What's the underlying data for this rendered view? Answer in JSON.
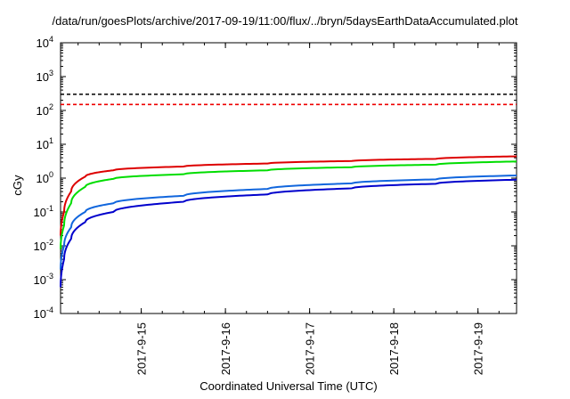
{
  "title": "/data/run/goesPlots/archive/2017-09-19/11:00/flux/../bryn/5daysEarthDataAccumulated.plot",
  "chart_data": {
    "type": "line",
    "title": "/data/run/goesPlots/archive/2017-09-19/11:00/flux/../bryn/5daysEarthDataAccumulated.plot",
    "xlabel": "Coordinated Universal Time (UTC)",
    "ylabel": "cGy",
    "y_scale": "log",
    "ylim": [
      0.0001,
      10000
    ],
    "xlim": [
      "2017-09-14 01:00",
      "2017-09-19 11:00"
    ],
    "grid": false,
    "legend": "none",
    "x_ticks": [
      "2017-9-15",
      "2017-9-16",
      "2017-9-17",
      "2017-9-18",
      "2017-9-19"
    ],
    "y_ticks": [
      {
        "base": "10",
        "exp": "-4"
      },
      {
        "base": "10",
        "exp": "-3"
      },
      {
        "base": "10",
        "exp": "-2"
      },
      {
        "base": "10",
        "exp": "-1"
      },
      {
        "base": "10",
        "exp": "0"
      },
      {
        "base": "10",
        "exp": "1"
      },
      {
        "base": "10",
        "exp": "2"
      },
      {
        "base": "10",
        "exp": "3"
      },
      {
        "base": "10",
        "exp": "4"
      }
    ],
    "series": [
      {
        "color": "#dd0000",
        "dash": false,
        "x": [
          "2017-09-14 01:00",
          "2017-09-14 02:00",
          "2017-09-14 04:00",
          "2017-09-14 08:00",
          "2017-09-14 16:00",
          "2017-09-15 12:00",
          "2017-09-16 12:00",
          "2017-09-17 12:00",
          "2017-09-18 12:00",
          "2017-09-19 11:00"
        ],
        "values": [
          0.02,
          0.1,
          0.4,
          1.1,
          1.7,
          2.2,
          2.7,
          3.2,
          3.7,
          4.4
        ]
      },
      {
        "color": "#00dd00",
        "dash": false,
        "x": [
          "2017-09-14 01:00",
          "2017-09-14 02:00",
          "2017-09-14 04:00",
          "2017-09-14 08:00",
          "2017-09-14 16:00",
          "2017-09-15 12:00",
          "2017-09-16 12:00",
          "2017-09-17 12:00",
          "2017-09-18 12:00",
          "2017-09-19 11:00"
        ],
        "values": [
          0.008,
          0.04,
          0.18,
          0.55,
          0.95,
          1.3,
          1.7,
          2.1,
          2.5,
          3.1
        ]
      },
      {
        "color": "#1166dd",
        "dash": false,
        "x": [
          "2017-09-14 01:00",
          "2017-09-14 02:00",
          "2017-09-14 04:00",
          "2017-09-14 08:00",
          "2017-09-14 16:00",
          "2017-09-15 12:00",
          "2017-09-16 12:00",
          "2017-09-17 12:00",
          "2017-09-18 12:00",
          "2017-09-19 11:00"
        ],
        "values": [
          0.002,
          0.01,
          0.035,
          0.1,
          0.18,
          0.3,
          0.48,
          0.7,
          0.92,
          1.2
        ]
      },
      {
        "color": "#0000cc",
        "dash": false,
        "x": [
          "2017-09-14 01:00",
          "2017-09-14 02:00",
          "2017-09-14 04:00",
          "2017-09-14 08:00",
          "2017-09-14 16:00",
          "2017-09-15 12:00",
          "2017-09-16 12:00",
          "2017-09-17 12:00",
          "2017-09-18 12:00",
          "2017-09-19 11:00"
        ],
        "values": [
          0.0006,
          0.004,
          0.016,
          0.05,
          0.1,
          0.2,
          0.33,
          0.5,
          0.68,
          0.9
        ]
      },
      {
        "color": "#000000",
        "dash": true,
        "x": [
          "2017-09-14 01:00",
          "2017-09-19 11:00"
        ],
        "values": [
          300,
          300
        ]
      },
      {
        "color": "#ee0000",
        "dash": true,
        "x": [
          "2017-09-14 01:00",
          "2017-09-19 11:00"
        ],
        "values": [
          150,
          150
        ]
      }
    ]
  }
}
